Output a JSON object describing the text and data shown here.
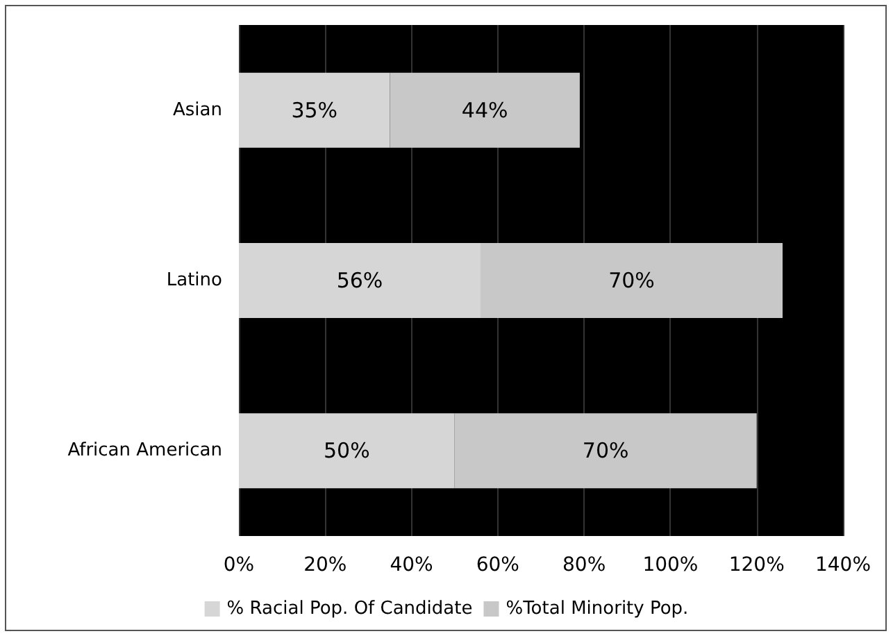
{
  "chart_data": {
    "type": "bar",
    "orientation": "horizontal",
    "stacked": true,
    "categories": [
      "Asian",
      "Latino",
      "African American"
    ],
    "series": [
      {
        "name": "% Racial Pop. Of Candidate",
        "color": "#d6d6d6",
        "values": [
          35,
          56,
          50
        ],
        "value_labels": [
          "35%",
          "56%",
          "50%"
        ]
      },
      {
        "name": "%Total Minority Pop.",
        "color": "#c8c8c8",
        "values": [
          44,
          70,
          70
        ],
        "value_labels": [
          "44%",
          "70%",
          "70%"
        ]
      }
    ],
    "xlim": [
      0,
      140
    ],
    "xticks": [
      {
        "value": 0,
        "label": "0%"
      },
      {
        "value": 20,
        "label": "20%"
      },
      {
        "value": 40,
        "label": "40%"
      },
      {
        "value": 60,
        "label": "60%"
      },
      {
        "value": 80,
        "label": "80%"
      },
      {
        "value": 100,
        "label": "100%"
      },
      {
        "value": 120,
        "label": "120%"
      },
      {
        "value": 140,
        "label": "140%"
      }
    ],
    "grid": "x",
    "legend": "bottom"
  }
}
